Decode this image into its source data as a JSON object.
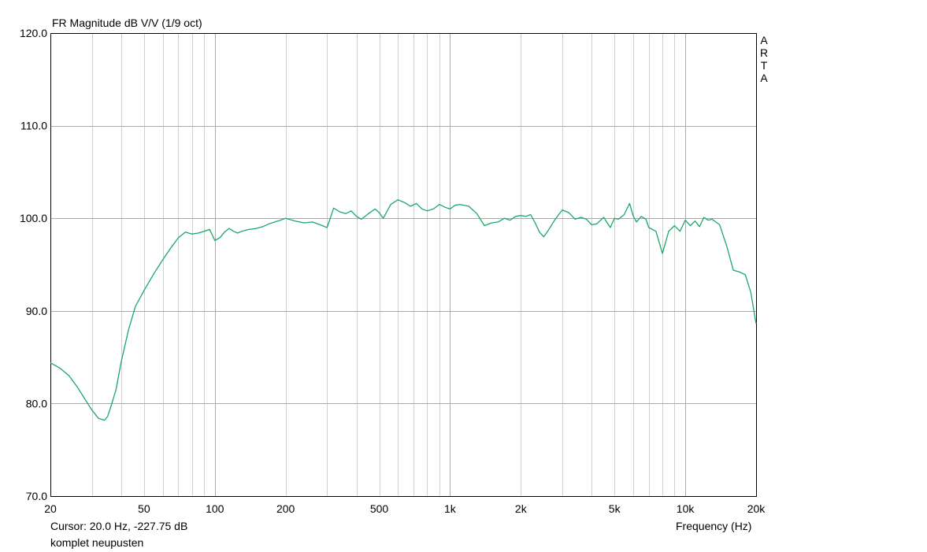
{
  "header": {
    "title": "FR Magnitude dB V/V (1/9 oct)",
    "watermark": "ARTA"
  },
  "footer": {
    "cursor": "Cursor: 20.0 Hz, -227.75 dB",
    "measurement_name": "komplet neupusten"
  },
  "colors": {
    "trace": "#1aa86a",
    "major_grid": "#a9a9a9",
    "minor_grid": "#cfcfcf",
    "frame": "#000000"
  },
  "chart_data": {
    "type": "line",
    "title": "FR Magnitude dB V/V (1/9 oct)",
    "xlabel": "Frequency (Hz)",
    "ylabel": "",
    "x_scale": "log",
    "xlim": [
      20,
      20000
    ],
    "ylim": [
      70,
      120
    ],
    "grid": true,
    "x_ticks": [
      20,
      50,
      100,
      200,
      500,
      1000,
      2000,
      5000,
      10000,
      20000
    ],
    "x_tick_labels": [
      "20",
      "50",
      "100",
      "200",
      "500",
      "1k",
      "2k",
      "5k",
      "10k",
      "20k"
    ],
    "y_ticks": [
      70,
      80,
      90,
      100,
      110,
      120
    ],
    "y_tick_labels": [
      "70.0",
      "80.0",
      "90.0",
      "100.0",
      "110.0",
      "120.0"
    ],
    "series": [
      {
        "x": [
          20,
          22,
          24,
          26,
          28,
          30,
          32,
          34,
          35,
          36,
          38,
          40,
          43,
          46,
          50,
          55,
          60,
          65,
          70,
          75,
          80,
          85,
          90,
          95,
          100,
          105,
          110,
          115,
          120,
          125,
          130,
          140,
          150,
          160,
          170,
          180,
          190,
          200,
          220,
          240,
          260,
          280,
          300,
          320,
          340,
          360,
          380,
          400,
          420,
          450,
          480,
          500,
          520,
          560,
          600,
          640,
          680,
          720,
          760,
          800,
          850,
          900,
          950,
          1000,
          1050,
          1100,
          1200,
          1300,
          1400,
          1500,
          1600,
          1700,
          1800,
          1900,
          2000,
          2100,
          2200,
          2300,
          2400,
          2500,
          2600,
          2800,
          3000,
          3200,
          3400,
          3600,
          3800,
          4000,
          4200,
          4500,
          4800,
          5000,
          5200,
          5500,
          5800,
          6000,
          6200,
          6500,
          6800,
          7000,
          7500,
          8000,
          8500,
          9000,
          9500,
          10000,
          10500,
          11000,
          11500,
          12000,
          12500,
          13000,
          14000,
          15000,
          16000,
          17000,
          18000,
          19000,
          20000
        ],
        "values": [
          84.4,
          83.8,
          83.0,
          81.8,
          80.5,
          79.3,
          78.4,
          78.2,
          78.6,
          79.5,
          81.5,
          84.5,
          88.0,
          90.5,
          92.2,
          94.0,
          95.5,
          96.8,
          97.9,
          98.5,
          98.3,
          98.4,
          98.6,
          98.8,
          97.6,
          97.9,
          98.5,
          98.9,
          98.6,
          98.4,
          98.6,
          98.8,
          98.9,
          99.1,
          99.4,
          99.6,
          99.8,
          100.0,
          99.7,
          99.5,
          99.6,
          99.3,
          99.0,
          101.1,
          100.7,
          100.5,
          100.8,
          100.2,
          99.9,
          100.5,
          101.0,
          100.6,
          100.0,
          101.5,
          102.0,
          101.7,
          101.3,
          101.6,
          101.0,
          100.8,
          101.0,
          101.5,
          101.2,
          101.0,
          101.4,
          101.5,
          101.3,
          100.5,
          99.2,
          99.5,
          99.6,
          100.0,
          99.8,
          100.2,
          100.3,
          100.2,
          100.4,
          99.5,
          98.5,
          98.0,
          98.6,
          99.9,
          100.9,
          100.6,
          99.9,
          100.1,
          99.9,
          99.3,
          99.4,
          100.1,
          99.0,
          100.0,
          99.9,
          100.4,
          101.6,
          100.3,
          99.6,
          100.2,
          99.9,
          99.0,
          98.6,
          96.2,
          98.6,
          99.2,
          98.6,
          99.8,
          99.2,
          99.7,
          99.1,
          100.1,
          99.8,
          99.9,
          99.3,
          97.0,
          94.4,
          94.2,
          93.9,
          92.0,
          88.6
        ]
      }
    ]
  }
}
